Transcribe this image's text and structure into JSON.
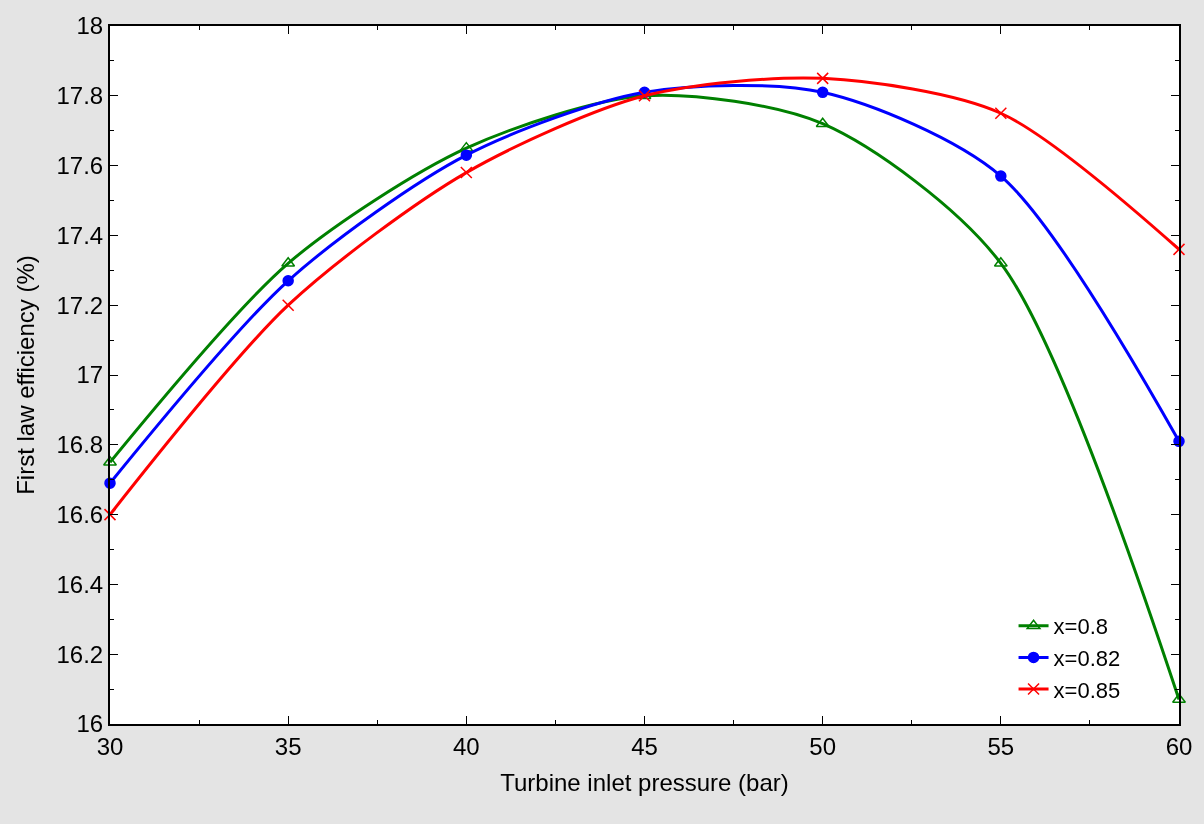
{
  "chart_data": {
    "type": "line",
    "xlabel": "Turbine inlet pressure (bar)",
    "ylabel": "First law efficiency (%)",
    "x": [
      30,
      35,
      40,
      45,
      50,
      55,
      60
    ],
    "series": [
      {
        "name": "x=0.8",
        "color": "#008000",
        "marker": "triangle",
        "values": [
          16.75,
          17.32,
          17.65,
          17.8,
          17.72,
          17.32,
          16.07
        ]
      },
      {
        "name": "x=0.82",
        "color": "#0000ff",
        "marker": "circle",
        "values": [
          16.69,
          17.27,
          17.63,
          17.81,
          17.81,
          17.57,
          16.81
        ]
      },
      {
        "name": "x=0.85",
        "color": "#ff0000",
        "marker": "cross",
        "values": [
          16.6,
          17.2,
          17.58,
          17.8,
          17.85,
          17.75,
          17.36
        ]
      }
    ],
    "xlim": [
      30,
      60
    ],
    "xticks": [
      30,
      35,
      40,
      45,
      50,
      55,
      60
    ],
    "ylim": [
      16,
      18
    ],
    "yticks": [
      16,
      16.2,
      16.4,
      16.6,
      16.8,
      17,
      17.2,
      17.4,
      17.6,
      17.8,
      18
    ],
    "legend": "bottom right",
    "line_style": "solid"
  }
}
